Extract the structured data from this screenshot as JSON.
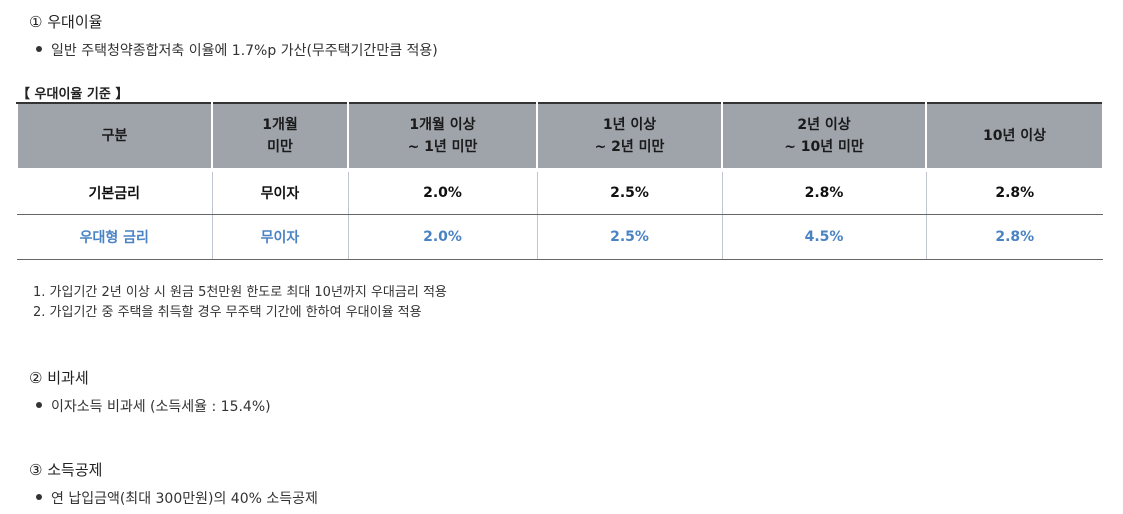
{
  "section1": {
    "heading": "① 우대이율",
    "bullet": "일반 주택청약종합저축 이율에 1.7%p 가산(무주택기간만큼 적용)"
  },
  "table_caption": "【 우대이율 기준 】",
  "table": {
    "headers": [
      {
        "line1": "구분",
        "line2": ""
      },
      {
        "line1": "1개월",
        "line2": "미만"
      },
      {
        "line1": "1개월 이상",
        "line2": "~ 1년 미만"
      },
      {
        "line1": "1년 이상",
        "line2": "~ 2년 미만"
      },
      {
        "line1": "2년 이상",
        "line2": "~ 10년 미만"
      },
      {
        "line1": "10년 이상",
        "line2": ""
      }
    ],
    "rows": [
      [
        "기본금리",
        "무이자",
        "2.0%",
        "2.5%",
        "2.8%",
        "2.8%"
      ],
      [
        "우대형 금리",
        "무이자",
        "2.0%",
        "2.5%",
        "4.5%",
        "2.8%"
      ]
    ],
    "highlight_color": "#4a83c4",
    "header_bg": "#9fa4ab"
  },
  "notes": [
    "1. 가입기간 2년 이상 시 원금 5천만원 한도로 최대 10년까지 우대금리 적용",
    "2. 가입기간 중 주택을 취득할 경우 무주택 기간에 한하여 우대이율 적용"
  ],
  "section2": {
    "heading": "② 비과세",
    "bullet": "이자소득 비과세 (소득세율 : 15.4%)"
  },
  "section3": {
    "heading": "③ 소득공제",
    "bullet": "연 납입금액(최대 300만원)의 40% 소득공제"
  }
}
